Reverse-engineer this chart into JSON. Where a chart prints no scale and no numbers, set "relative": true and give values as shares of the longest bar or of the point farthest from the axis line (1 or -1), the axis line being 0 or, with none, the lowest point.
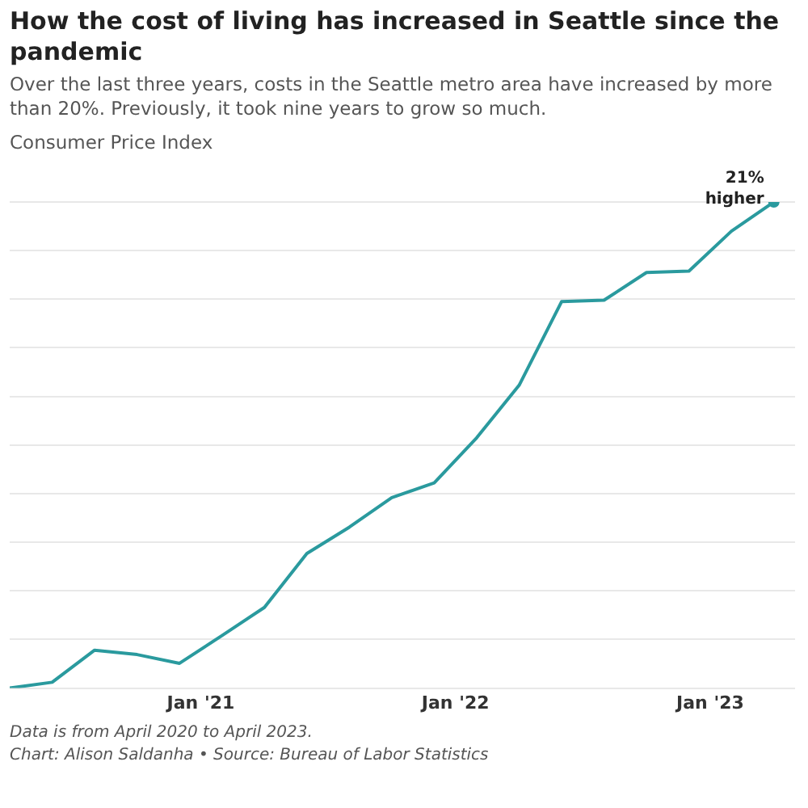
{
  "chart_data": {
    "type": "line",
    "title": "How the cost of living has increased in Seattle since the pandemic",
    "subtitle": "Over the last three years, costs in the Seattle metro area have increased by more than 20%. Previously, it took nine years to grow so much.",
    "ylabel": "Consumer Price Index",
    "relative": true,
    "x": [
      "2020-04",
      "2020-06",
      "2020-08",
      "2020-10",
      "2020-12",
      "2021-02",
      "2021-04",
      "2021-06",
      "2021-08",
      "2021-10",
      "2021-12",
      "2022-02",
      "2022-04",
      "2022-06",
      "2022-08",
      "2022-10",
      "2022-12",
      "2023-02",
      "2023-04"
    ],
    "xlim": [
      "2020-04",
      "2023-05"
    ],
    "xticks": [
      {
        "value": "2021-01",
        "label": "Jan '21"
      },
      {
        "value": "2022-01",
        "label": "Jan '22"
      },
      {
        "value": "2023-01",
        "label": "Jan '23"
      }
    ],
    "series": [
      {
        "color": "#2a9a9e",
        "values": [
          0,
          0.012,
          0.078,
          0.069,
          0.051,
          0.108,
          0.166,
          0.277,
          0.331,
          0.392,
          0.422,
          0.515,
          0.623,
          0.795,
          0.798,
          0.855,
          0.858,
          0.94,
          1
        ]
      }
    ],
    "grid": "y",
    "marker": "none",
    "line_style": "solid",
    "tick_labels": "x",
    "legend": false,
    "annotations": [
      {
        "text": "21% higher",
        "x": "2023-04",
        "y": 1
      },
      "Data is from April 2020 to April 2023.",
      "Chart: Alison Saldanha • Source: Bureau of Labor Statistics"
    ]
  }
}
